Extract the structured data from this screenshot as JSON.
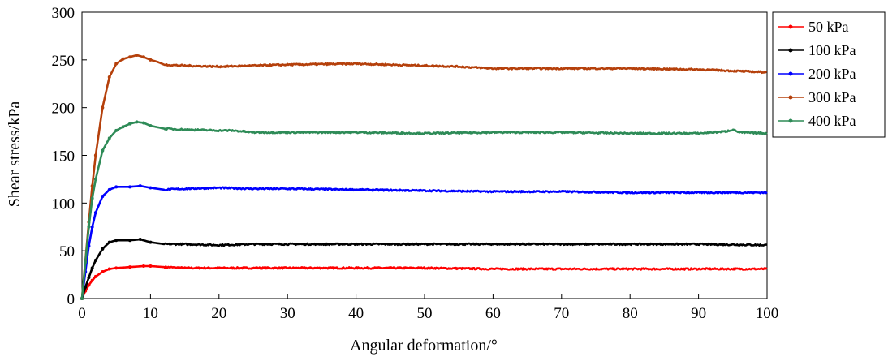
{
  "chart_data": {
    "type": "line",
    "title": "",
    "xlabel": "Angular deformation/°",
    "ylabel": "Shear stress/kPa",
    "xlim": [
      0,
      100
    ],
    "ylim": [
      0,
      300
    ],
    "xticks": [
      0,
      10,
      20,
      30,
      40,
      50,
      60,
      70,
      80,
      90,
      100
    ],
    "yticks": [
      0,
      50,
      100,
      150,
      200,
      250,
      300
    ],
    "grid": false,
    "legend_position": "outside-top-right",
    "series": [
      {
        "name": "50 kPa",
        "color": "#ff0000",
        "points": [
          [
            0,
            0
          ],
          [
            0.5,
            8
          ],
          [
            1,
            14
          ],
          [
            1.5,
            19
          ],
          [
            2,
            23
          ],
          [
            3,
            28
          ],
          [
            4,
            31
          ],
          [
            5,
            32
          ],
          [
            7,
            33
          ],
          [
            9,
            34
          ],
          [
            10,
            34
          ],
          [
            12,
            33
          ],
          [
            15,
            32
          ],
          [
            20,
            32
          ],
          [
            25,
            32
          ],
          [
            30,
            32
          ],
          [
            40,
            32
          ],
          [
            50,
            32
          ],
          [
            60,
            31
          ],
          [
            70,
            31
          ],
          [
            80,
            31
          ],
          [
            90,
            31
          ],
          [
            100,
            31
          ]
        ]
      },
      {
        "name": "100 kPa",
        "color": "#000000",
        "points": [
          [
            0,
            0
          ],
          [
            0.5,
            12
          ],
          [
            1,
            22
          ],
          [
            1.5,
            32
          ],
          [
            2,
            40
          ],
          [
            3,
            52
          ],
          [
            4,
            59
          ],
          [
            5,
            61
          ],
          [
            7,
            61
          ],
          [
            8.5,
            62
          ],
          [
            10,
            59
          ],
          [
            12,
            57
          ],
          [
            15,
            57
          ],
          [
            20,
            56
          ],
          [
            25,
            57
          ],
          [
            30,
            57
          ],
          [
            40,
            57
          ],
          [
            50,
            57
          ],
          [
            60,
            57
          ],
          [
            70,
            57
          ],
          [
            80,
            57
          ],
          [
            90,
            57
          ],
          [
            100,
            56
          ]
        ]
      },
      {
        "name": "200 kPa",
        "color": "#0000ff",
        "points": [
          [
            0,
            0
          ],
          [
            0.5,
            28
          ],
          [
            1,
            55
          ],
          [
            1.5,
            75
          ],
          [
            2,
            90
          ],
          [
            3,
            107
          ],
          [
            4,
            114
          ],
          [
            5,
            117
          ],
          [
            7,
            117
          ],
          [
            8.5,
            118
          ],
          [
            10,
            116
          ],
          [
            12,
            114
          ],
          [
            15,
            115
          ],
          [
            20,
            116
          ],
          [
            25,
            115
          ],
          [
            30,
            115
          ],
          [
            40,
            114
          ],
          [
            50,
            113
          ],
          [
            60,
            112
          ],
          [
            70,
            112
          ],
          [
            80,
            111
          ],
          [
            90,
            111
          ],
          [
            100,
            111
          ]
        ]
      },
      {
        "name": "300 kPa",
        "color": "#b5400b",
        "points": [
          [
            0,
            0
          ],
          [
            0.5,
            40
          ],
          [
            1,
            80
          ],
          [
            1.5,
            118
          ],
          [
            2,
            150
          ],
          [
            3,
            200
          ],
          [
            4,
            232
          ],
          [
            5,
            246
          ],
          [
            6,
            251
          ],
          [
            7,
            253
          ],
          [
            8,
            255
          ],
          [
            9,
            253
          ],
          [
            10,
            250
          ],
          [
            11,
            248
          ],
          [
            12,
            245
          ],
          [
            15,
            244
          ],
          [
            20,
            243
          ],
          [
            25,
            244
          ],
          [
            30,
            245
          ],
          [
            40,
            246
          ],
          [
            50,
            244
          ],
          [
            55,
            243
          ],
          [
            60,
            241
          ],
          [
            70,
            241
          ],
          [
            80,
            241
          ],
          [
            90,
            240
          ],
          [
            100,
            237
          ]
        ]
      },
      {
        "name": "400 kPa",
        "color": "#2e8b57",
        "points": [
          [
            0,
            0
          ],
          [
            0.5,
            38
          ],
          [
            1,
            75
          ],
          [
            1.5,
            105
          ],
          [
            2,
            125
          ],
          [
            3,
            155
          ],
          [
            4,
            168
          ],
          [
            5,
            176
          ],
          [
            6,
            180
          ],
          [
            7,
            183
          ],
          [
            8,
            185
          ],
          [
            9,
            184
          ],
          [
            10,
            181
          ],
          [
            12,
            178
          ],
          [
            15,
            177
          ],
          [
            20,
            176
          ],
          [
            22,
            176
          ],
          [
            25,
            174
          ],
          [
            30,
            174
          ],
          [
            40,
            174
          ],
          [
            50,
            173
          ],
          [
            60,
            174
          ],
          [
            70,
            174
          ],
          [
            80,
            173
          ],
          [
            90,
            173
          ],
          [
            94,
            175
          ],
          [
            95,
            177
          ],
          [
            96,
            174
          ],
          [
            100,
            173
          ]
        ]
      }
    ]
  }
}
